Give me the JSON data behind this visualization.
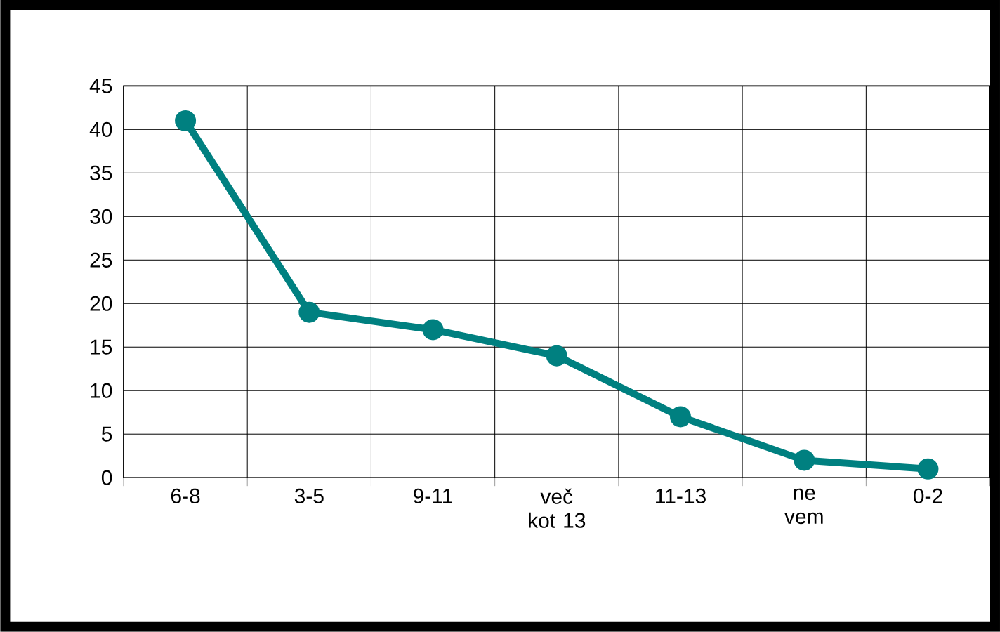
{
  "chart_data": {
    "type": "line",
    "categories": [
      "6-8",
      "3-5",
      "9-11",
      "več kot 13",
      "11-13",
      "ne vem",
      "0-2"
    ],
    "series": [
      {
        "color": "#008080",
        "values": [
          41,
          19,
          17,
          14,
          7,
          2,
          1
        ]
      }
    ],
    "ylim": [
      0,
      45
    ],
    "yticks": [
      0,
      5,
      10,
      15,
      20,
      25,
      30,
      35,
      40,
      45
    ],
    "grid": true,
    "marker": "circle",
    "line_style": "solid"
  }
}
